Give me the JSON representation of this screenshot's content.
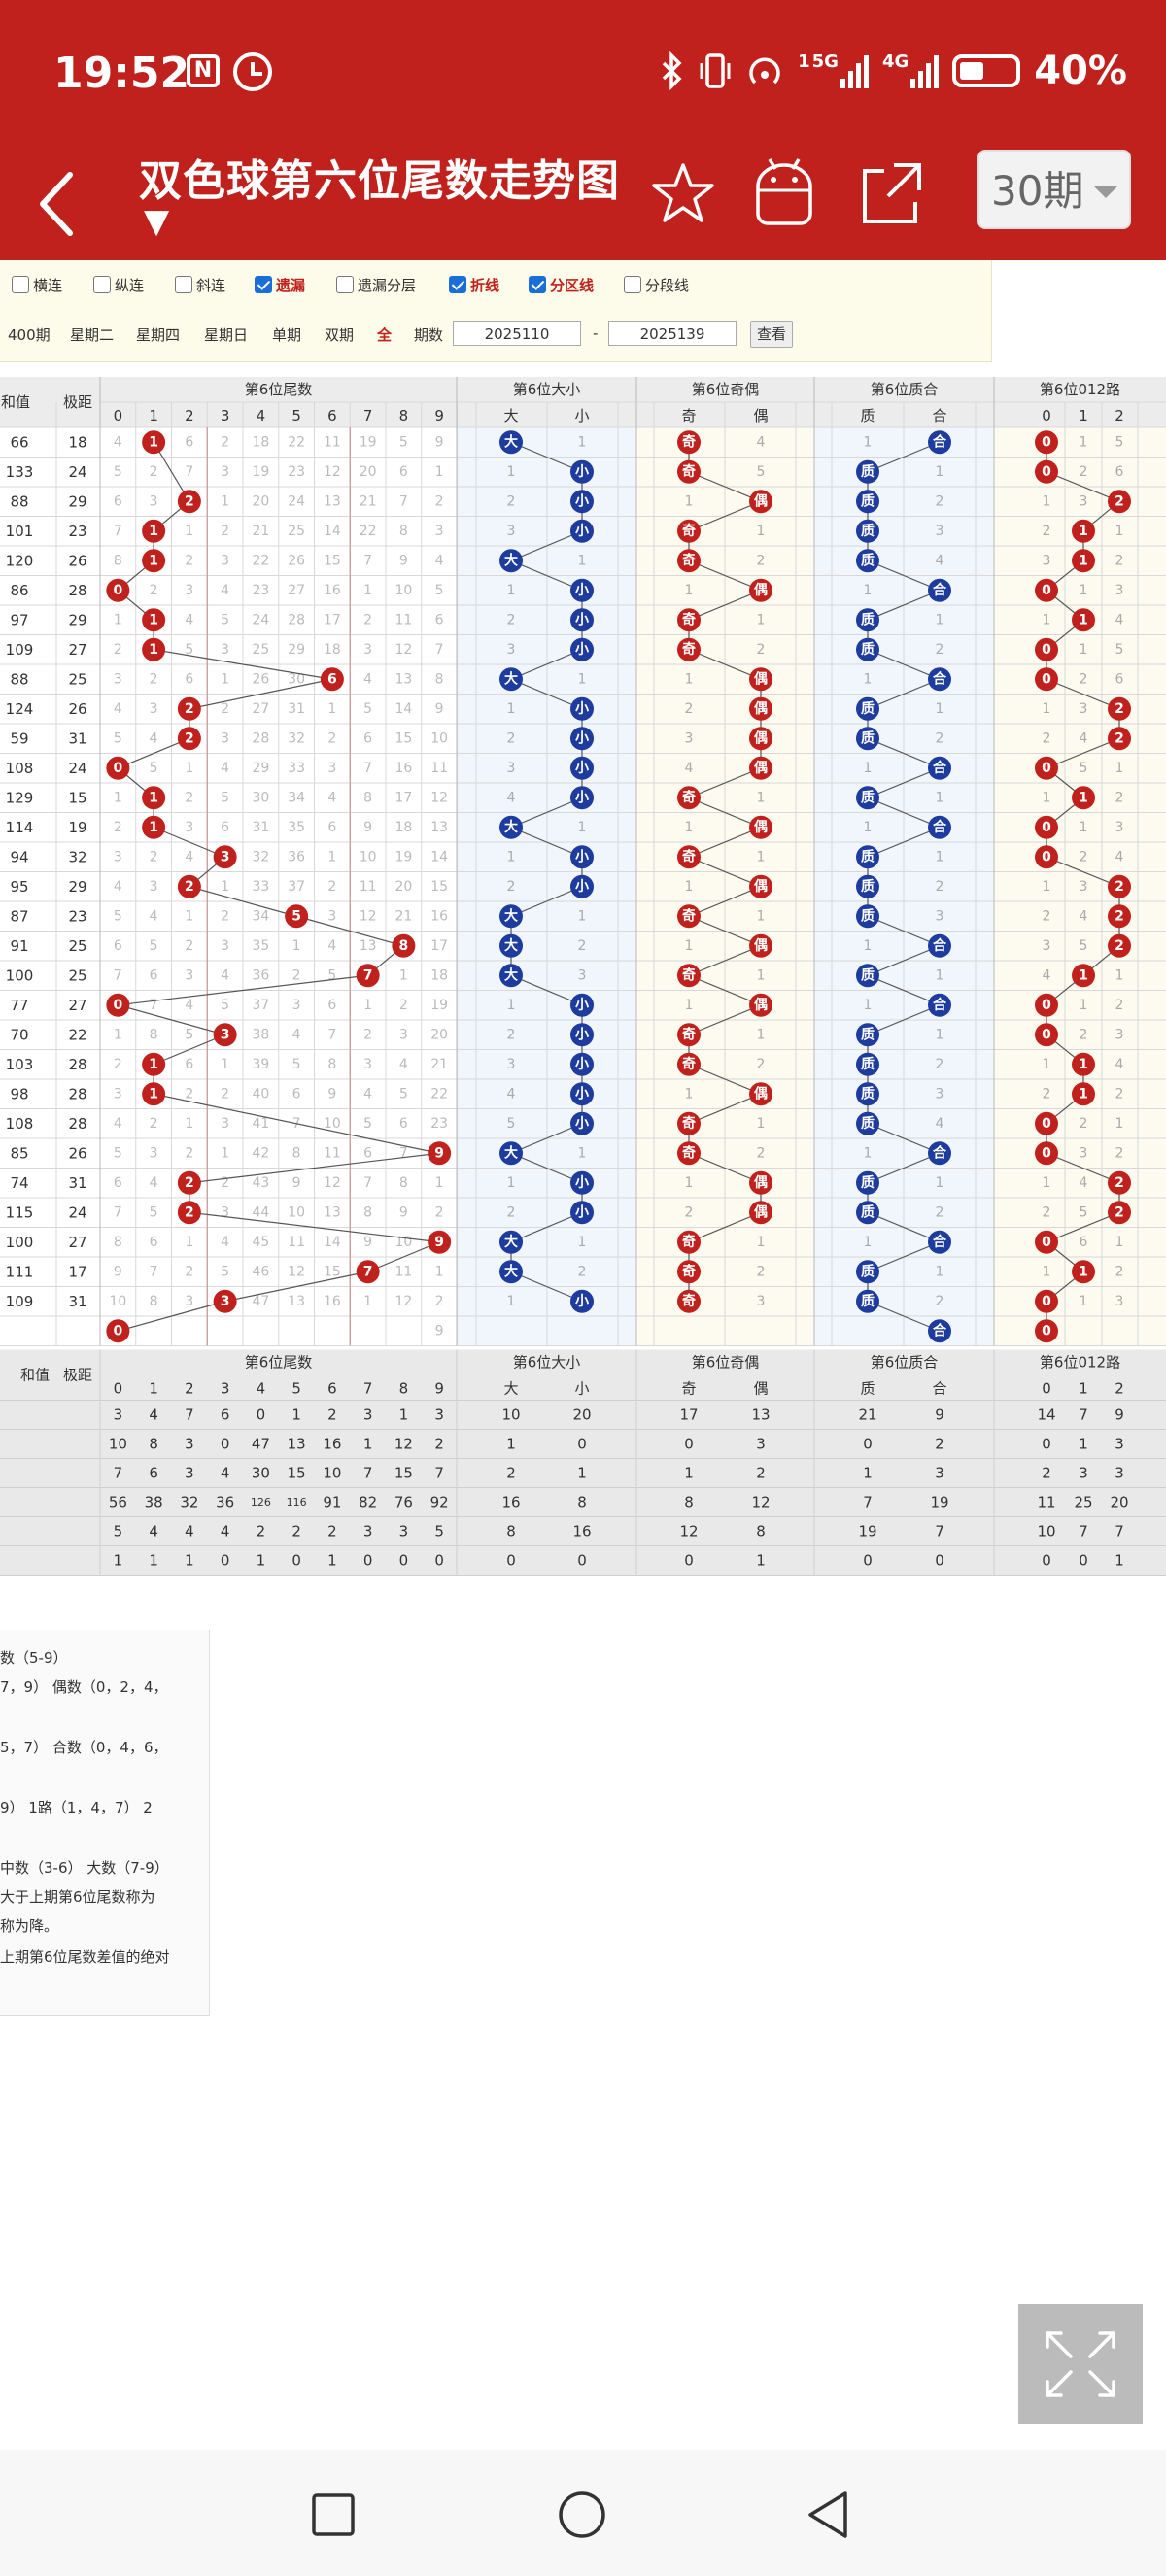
{
  "status_bar": {
    "time": "19:52",
    "nfc_icon": "nfc-icon",
    "alarm_icon": "alarm-icon",
    "network_1": "5G",
    "network_2": "4G",
    "sim_1": "1",
    "battery": "40%"
  },
  "app_bar": {
    "title": "双色球第六位尾数走势图",
    "period": "30期",
    "icons": [
      "back-icon",
      "star-icon",
      "robot-icon",
      "share-icon"
    ]
  },
  "filters": {
    "options": [
      {
        "label": "横连",
        "checked": false
      },
      {
        "label": "纵连",
        "checked": false
      },
      {
        "label": "斜连",
        "checked": false
      },
      {
        "label": "遗漏",
        "checked": true
      },
      {
        "label": "遗漏分层",
        "checked": false
      },
      {
        "label": "折线",
        "checked": true
      },
      {
        "label": "分区线",
        "checked": true
      },
      {
        "label": "分段线",
        "checked": false
      }
    ],
    "quick_links": [
      "400期",
      "星期二",
      "星期四",
      "星期日",
      "单期",
      "双期",
      "全"
    ],
    "period_label": "期数",
    "from": "2025110",
    "dash": "-",
    "to": "2025139",
    "query_label": "查看"
  },
  "table": {
    "group_titles": [
      "第6位尾数",
      "第6位大小",
      "第6位奇偶",
      "第6位质合",
      "第6位012路"
    ],
    "sum_label": "和值",
    "range_label": "极距",
    "digit_headers": [
      "0",
      "1",
      "2",
      "3",
      "4",
      "5",
      "6",
      "7",
      "8",
      "9"
    ],
    "big_small_headers": [
      "大",
      "小"
    ],
    "odd_even_headers": [
      "奇",
      "偶"
    ],
    "prime_headers": [
      "质",
      "合"
    ],
    "mod_headers": [
      "0",
      "1",
      "2"
    ],
    "rows": [
      {
        "s": "66",
        "j": "18",
        "d": [
          "4",
          "1",
          "6",
          "2",
          "18",
          "22",
          "11",
          "19",
          "5",
          "9"
        ],
        "bs": [
          "大",
          "1"
        ],
        "oe": [
          "奇",
          "4"
        ],
        "pc": [
          "1",
          "合"
        ],
        "m": [
          "0",
          "1",
          "5"
        ]
      },
      {
        "s": "133",
        "j": "24",
        "d": [
          "5",
          "2",
          "7",
          "3",
          "19",
          "23",
          "12",
          "20",
          "6",
          "1"
        ],
        "bs": [
          "1",
          "小"
        ],
        "oe": [
          "奇",
          "5"
        ],
        "pc": [
          "质",
          "1"
        ],
        "m": [
          "0",
          "2",
          "6"
        ]
      },
      {
        "s": "88",
        "j": "29",
        "d": [
          "6",
          "3",
          "2",
          "1",
          "20",
          "24",
          "13",
          "21",
          "7",
          "2"
        ],
        "bs": [
          "2",
          "小"
        ],
        "oe": [
          "1",
          "偶"
        ],
        "pc": [
          "质",
          "2"
        ],
        "m": [
          "1",
          "3",
          "2"
        ]
      },
      {
        "s": "101",
        "j": "23",
        "d": [
          "7",
          "1",
          "1",
          "2",
          "21",
          "25",
          "14",
          "22",
          "8",
          "3"
        ],
        "bs": [
          "3",
          "小"
        ],
        "oe": [
          "奇",
          "1"
        ],
        "pc": [
          "质",
          "3"
        ],
        "m": [
          "2",
          "1",
          "1"
        ]
      },
      {
        "s": "120",
        "j": "26",
        "d": [
          "8",
          "1",
          "2",
          "3",
          "22",
          "26",
          "15",
          "7",
          "9",
          "4"
        ],
        "bs": [
          "大",
          "1"
        ],
        "oe": [
          "奇",
          "2"
        ],
        "pc": [
          "质",
          "4"
        ],
        "m": [
          "3",
          "1",
          "2"
        ]
      },
      {
        "s": "86",
        "j": "28",
        "d": [
          "0",
          "2",
          "3",
          "4",
          "23",
          "27",
          "16",
          "1",
          "10",
          "5"
        ],
        "bs": [
          "1",
          "小"
        ],
        "oe": [
          "1",
          "偶"
        ],
        "pc": [
          "1",
          "合"
        ],
        "m": [
          "0",
          "1",
          "3"
        ]
      },
      {
        "s": "97",
        "j": "29",
        "d": [
          "1",
          "1",
          "4",
          "5",
          "24",
          "28",
          "17",
          "2",
          "11",
          "6"
        ],
        "bs": [
          "2",
          "小"
        ],
        "oe": [
          "奇",
          "1"
        ],
        "pc": [
          "质",
          "1"
        ],
        "m": [
          "1",
          "1",
          "4"
        ]
      },
      {
        "s": "109",
        "j": "27",
        "d": [
          "2",
          "1",
          "5",
          "3",
          "25",
          "29",
          "18",
          "3",
          "12",
          "7"
        ],
        "bs": [
          "3",
          "小"
        ],
        "oe": [
          "奇",
          "2"
        ],
        "pc": [
          "质",
          "2"
        ],
        "m": [
          "0",
          "1",
          "5"
        ]
      },
      {
        "s": "88",
        "j": "25",
        "d": [
          "3",
          "2",
          "6",
          "1",
          "26",
          "30",
          "6",
          "4",
          "13",
          "8"
        ],
        "bs": [
          "大",
          "1"
        ],
        "oe": [
          "1",
          "偶"
        ],
        "pc": [
          "1",
          "合"
        ],
        "m": [
          "0",
          "2",
          "6"
        ]
      },
      {
        "s": "124",
        "j": "26",
        "d": [
          "4",
          "3",
          "2",
          "2",
          "27",
          "31",
          "1",
          "5",
          "14",
          "9"
        ],
        "bs": [
          "1",
          "小"
        ],
        "oe": [
          "2",
          "偶"
        ],
        "pc": [
          "质",
          "1"
        ],
        "m": [
          "1",
          "3",
          "2"
        ]
      },
      {
        "s": "59",
        "j": "31",
        "d": [
          "5",
          "4",
          "2",
          "3",
          "28",
          "32",
          "2",
          "6",
          "15",
          "10"
        ],
        "bs": [
          "2",
          "小"
        ],
        "oe": [
          "3",
          "偶"
        ],
        "pc": [
          "质",
          "2"
        ],
        "m": [
          "2",
          "4",
          "2"
        ]
      },
      {
        "s": "108",
        "j": "24",
        "d": [
          "0",
          "5",
          "1",
          "4",
          "29",
          "33",
          "3",
          "7",
          "16",
          "11"
        ],
        "bs": [
          "3",
          "小"
        ],
        "oe": [
          "4",
          "偶"
        ],
        "pc": [
          "1",
          "合"
        ],
        "m": [
          "0",
          "5",
          "1"
        ]
      },
      {
        "s": "129",
        "j": "15",
        "d": [
          "1",
          "1",
          "2",
          "5",
          "30",
          "34",
          "4",
          "8",
          "17",
          "12"
        ],
        "bs": [
          "4",
          "小"
        ],
        "oe": [
          "奇",
          "1"
        ],
        "pc": [
          "质",
          "1"
        ],
        "m": [
          "1",
          "1",
          "2"
        ]
      },
      {
        "s": "114",
        "j": "19",
        "d": [
          "2",
          "1",
          "3",
          "6",
          "31",
          "35",
          "6",
          "9",
          "18",
          "13"
        ],
        "bs": [
          "大",
          "1"
        ],
        "oe": [
          "1",
          "偶"
        ],
        "pc": [
          "1",
          "合"
        ],
        "m": [
          "0",
          "1",
          "3"
        ]
      },
      {
        "s": "94",
        "j": "32",
        "d": [
          "3",
          "2",
          "4",
          "3",
          "32",
          "36",
          "1",
          "10",
          "19",
          "14"
        ],
        "bs": [
          "1",
          "小"
        ],
        "oe": [
          "奇",
          "1"
        ],
        "pc": [
          "质",
          "1"
        ],
        "m": [
          "0",
          "2",
          "4"
        ]
      },
      {
        "s": "95",
        "j": "29",
        "d": [
          "4",
          "3",
          "2",
          "1",
          "33",
          "37",
          "2",
          "11",
          "20",
          "15"
        ],
        "bs": [
          "2",
          "小"
        ],
        "oe": [
          "1",
          "偶"
        ],
        "pc": [
          "质",
          "2"
        ],
        "m": [
          "1",
          "3",
          "2"
        ]
      },
      {
        "s": "87",
        "j": "23",
        "d": [
          "5",
          "4",
          "1",
          "2",
          "34",
          "5",
          "3",
          "12",
          "21",
          "16"
        ],
        "bs": [
          "大",
          "1"
        ],
        "oe": [
          "奇",
          "1"
        ],
        "pc": [
          "质",
          "3"
        ],
        "m": [
          "2",
          "4",
          "2"
        ]
      },
      {
        "s": "91",
        "j": "25",
        "d": [
          "6",
          "5",
          "2",
          "3",
          "35",
          "1",
          "4",
          "13",
          "8",
          "17"
        ],
        "bs": [
          "大",
          "2"
        ],
        "oe": [
          "1",
          "偶"
        ],
        "pc": [
          "1",
          "合"
        ],
        "m": [
          "3",
          "5",
          "2"
        ]
      },
      {
        "s": "100",
        "j": "25",
        "d": [
          "7",
          "6",
          "3",
          "4",
          "36",
          "2",
          "5",
          "7",
          "1",
          "18"
        ],
        "bs": [
          "大",
          "3"
        ],
        "oe": [
          "奇",
          "1"
        ],
        "pc": [
          "质",
          "1"
        ],
        "m": [
          "4",
          "1",
          "1"
        ]
      },
      {
        "s": "77",
        "j": "27",
        "d": [
          "0",
          "7",
          "4",
          "5",
          "37",
          "3",
          "6",
          "1",
          "2",
          "19"
        ],
        "bs": [
          "1",
          "小"
        ],
        "oe": [
          "1",
          "偶"
        ],
        "pc": [
          "1",
          "合"
        ],
        "m": [
          "0",
          "1",
          "2"
        ]
      },
      {
        "s": "70",
        "j": "22",
        "d": [
          "1",
          "8",
          "5",
          "3",
          "38",
          "4",
          "7",
          "2",
          "3",
          "20"
        ],
        "bs": [
          "2",
          "小"
        ],
        "oe": [
          "奇",
          "1"
        ],
        "pc": [
          "质",
          "1"
        ],
        "m": [
          "0",
          "2",
          "3"
        ]
      },
      {
        "s": "103",
        "j": "28",
        "d": [
          "2",
          "1",
          "6",
          "1",
          "39",
          "5",
          "8",
          "3",
          "4",
          "21"
        ],
        "bs": [
          "3",
          "小"
        ],
        "oe": [
          "奇",
          "2"
        ],
        "pc": [
          "质",
          "2"
        ],
        "m": [
          "1",
          "1",
          "4"
        ]
      },
      {
        "s": "98",
        "j": "28",
        "d": [
          "3",
          "1",
          "2",
          "2",
          "40",
          "6",
          "9",
          "4",
          "5",
          "22"
        ],
        "bs": [
          "4",
          "小"
        ],
        "oe": [
          "1",
          "偶"
        ],
        "pc": [
          "质",
          "3"
        ],
        "m": [
          "2",
          "1",
          "2"
        ]
      },
      {
        "s": "108",
        "j": "28",
        "d": [
          "4",
          "2",
          "1",
          "3",
          "41",
          "7",
          "10",
          "5",
          "6",
          "23"
        ],
        "bs": [
          "5",
          "小"
        ],
        "oe": [
          "奇",
          "1"
        ],
        "pc": [
          "质",
          "4"
        ],
        "m": [
          "0",
          "2",
          "1"
        ]
      },
      {
        "s": "85",
        "j": "26",
        "d": [
          "5",
          "3",
          "2",
          "1",
          "42",
          "8",
          "11",
          "6",
          "7",
          "9"
        ],
        "bs": [
          "大",
          "1"
        ],
        "oe": [
          "奇",
          "2"
        ],
        "pc": [
          "1",
          "合"
        ],
        "m": [
          "0",
          "3",
          "2"
        ]
      },
      {
        "s": "74",
        "j": "31",
        "d": [
          "6",
          "4",
          "2",
          "2",
          "43",
          "9",
          "12",
          "7",
          "8",
          "1"
        ],
        "bs": [
          "1",
          "小"
        ],
        "oe": [
          "1",
          "偶"
        ],
        "pc": [
          "质",
          "1"
        ],
        "m": [
          "1",
          "4",
          "2"
        ]
      },
      {
        "s": "115",
        "j": "24",
        "d": [
          "7",
          "5",
          "2",
          "3",
          "44",
          "10",
          "13",
          "8",
          "9",
          "2"
        ],
        "bs": [
          "2",
          "小"
        ],
        "oe": [
          "2",
          "偶"
        ],
        "pc": [
          "质",
          "2"
        ],
        "m": [
          "2",
          "5",
          "2"
        ]
      },
      {
        "s": "100",
        "j": "27",
        "d": [
          "8",
          "6",
          "1",
          "4",
          "45",
          "11",
          "14",
          "9",
          "10",
          "9"
        ],
        "bs": [
          "大",
          "1"
        ],
        "oe": [
          "奇",
          "1"
        ],
        "pc": [
          "1",
          "合"
        ],
        "m": [
          "0",
          "6",
          "1"
        ]
      },
      {
        "s": "111",
        "j": "17",
        "d": [
          "9",
          "7",
          "2",
          "5",
          "46",
          "12",
          "15",
          "7",
          "11",
          "1"
        ],
        "bs": [
          "大",
          "2"
        ],
        "oe": [
          "奇",
          "2"
        ],
        "pc": [
          "质",
          "1"
        ],
        "m": [
          "1",
          "1",
          "2"
        ]
      },
      {
        "s": "109",
        "j": "31",
        "d": [
          "10",
          "8",
          "3",
          "3",
          "47",
          "13",
          "16",
          "1",
          "12",
          "2"
        ],
        "bs": [
          "1",
          "小"
        ],
        "oe": [
          "奇",
          "3"
        ],
        "pc": [
          "质",
          "2"
        ],
        "m": [
          "0",
          "1",
          "3"
        ]
      },
      {
        "s": "",
        "j": "",
        "d": [
          "0",
          "",
          "",
          "",
          "",
          "",
          "",
          "",
          "",
          "9"
        ],
        "bs": [
          "",
          ""
        ],
        "oe": [
          "",
          ""
        ],
        "pc": [
          "",
          "合"
        ],
        "m": [
          "0",
          "",
          ""
        ]
      }
    ],
    "stats_rows": [
      {
        "d": [
          "3",
          "4",
          "7",
          "6",
          "0",
          "1",
          "2",
          "3",
          "1",
          "3"
        ],
        "bs": [
          "10",
          "20"
        ],
        "oe": [
          "17",
          "13"
        ],
        "pc": [
          "21",
          "9"
        ],
        "m": [
          "14",
          "7",
          "9"
        ]
      },
      {
        "d": [
          "10",
          "8",
          "3",
          "0",
          "47",
          "13",
          "16",
          "1",
          "12",
          "2"
        ],
        "bs": [
          "1",
          "0"
        ],
        "oe": [
          "0",
          "3"
        ],
        "pc": [
          "0",
          "2"
        ],
        "m": [
          "0",
          "1",
          "3"
        ]
      },
      {
        "d": [
          "7",
          "6",
          "3",
          "4",
          "30",
          "15",
          "10",
          "7",
          "15",
          "7"
        ],
        "bs": [
          "2",
          "1"
        ],
        "oe": [
          "1",
          "2"
        ],
        "pc": [
          "1",
          "3"
        ],
        "m": [
          "2",
          "3",
          "3"
        ]
      },
      {
        "d": [
          "56",
          "38",
          "32",
          "36",
          "126",
          "116",
          "91",
          "82",
          "76",
          "92"
        ],
        "bs": [
          "16",
          "8"
        ],
        "oe": [
          "8",
          "12"
        ],
        "pc": [
          "7",
          "19"
        ],
        "m": [
          "11",
          "25",
          "20"
        ]
      },
      {
        "d": [
          "5",
          "4",
          "4",
          "4",
          "2",
          "2",
          "2",
          "3",
          "3",
          "5"
        ],
        "bs": [
          "8",
          "16"
        ],
        "oe": [
          "12",
          "8"
        ],
        "pc": [
          "19",
          "7"
        ],
        "m": [
          "10",
          "7",
          "7"
        ]
      },
      {
        "d": [
          "1",
          "1",
          "1",
          "0",
          "1",
          "0",
          "1",
          "0",
          "0",
          "0"
        ],
        "bs": [
          "0",
          "0"
        ],
        "oe": [
          "0",
          "1"
        ],
        "pc": [
          "0",
          "0"
        ],
        "m": [
          "0",
          "0",
          "1"
        ]
      }
    ]
  },
  "notes": [
    "数（5-9）",
    "7，9）  偶数（0，2，4，",
    "5，7）  合数（0，4，6，",
    "9）  1路（1，4，7）  2",
    "中数（3-6）  大数（7-9）",
    "大于上期第6位尾数称为",
    "称为降。",
    "上期第6位尾数差值的绝对"
  ],
  "expand_icon": "expand-icon",
  "nav_bar": {
    "icons": [
      "recent-apps-icon",
      "home-icon",
      "back-nav-icon"
    ]
  }
}
